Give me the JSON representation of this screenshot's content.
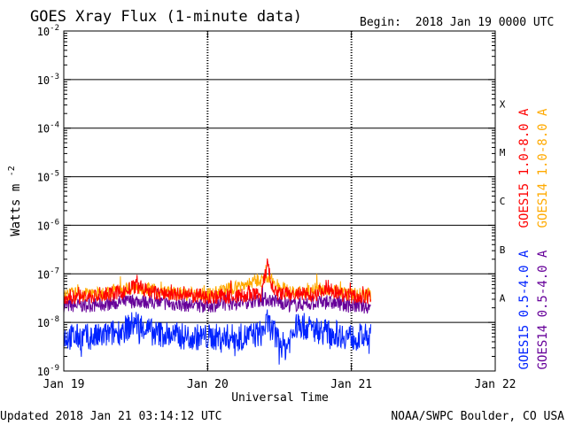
{
  "chart_data": {
    "type": "line",
    "title": "GOES Xray Flux (1-minute data)",
    "begin_label": "Begin:",
    "begin_value": "2018 Jan 19 0000 UTC",
    "xlabel": "Universal Time",
    "ylabel": "Watts m",
    "ylabel_exp": "-2",
    "y_scale": "log",
    "ylim": [
      1e-09,
      0.01
    ],
    "y_ticks": [
      {
        "base": "10",
        "exp": "-9",
        "value": 1e-09
      },
      {
        "base": "10",
        "exp": "-8",
        "value": 1e-08
      },
      {
        "base": "10",
        "exp": "-7",
        "value": 1e-07
      },
      {
        "base": "10",
        "exp": "-6",
        "value": 1e-06
      },
      {
        "base": "10",
        "exp": "-5",
        "value": 1e-05
      },
      {
        "base": "10",
        "exp": "-4",
        "value": 0.0001
      },
      {
        "base": "10",
        "exp": "-3",
        "value": 0.001
      },
      {
        "base": "10",
        "exp": "-2",
        "value": 0.01
      }
    ],
    "xlim": [
      "2018-01-19 00:00",
      "2018-01-22 00:00"
    ],
    "x_ticks": [
      {
        "label": "Jan 19",
        "value": "2018-01-19 00:00"
      },
      {
        "label": "Jan 20",
        "value": "2018-01-20 00:00"
      },
      {
        "label": "Jan 21",
        "value": "2018-01-21 00:00"
      },
      {
        "label": "Jan 22",
        "value": "2018-01-22 00:00"
      }
    ],
    "flare_classes": [
      {
        "label": "A",
        "value": 1e-08
      },
      {
        "label": "B",
        "value": 1e-07
      },
      {
        "label": "C",
        "value": 1e-06
      },
      {
        "label": "M",
        "value": 1e-05
      },
      {
        "label": "X",
        "value": 0.0001
      }
    ],
    "grid": true,
    "legend_position": "right",
    "series": [
      {
        "name": "GOES15 1.0-8.0 A",
        "color": "#ff0000",
        "points": [
          [
            "2018-01-19 00:00",
            3.3e-08
          ],
          [
            "2018-01-19 06:00",
            3.5e-08
          ],
          [
            "2018-01-19 10:00",
            4.2e-08
          ],
          [
            "2018-01-19 12:00",
            5.5e-08
          ],
          [
            "2018-01-19 15:00",
            4e-08
          ],
          [
            "2018-01-19 20:00",
            3.6e-08
          ],
          [
            "2018-01-20 00:00",
            3.4e-08
          ],
          [
            "2018-01-20 06:00",
            3.5e-08
          ],
          [
            "2018-01-20 09:00",
            3.8e-08
          ],
          [
            "2018-01-20 10:00",
            1.6e-07
          ],
          [
            "2018-01-20 11:00",
            4e-08
          ],
          [
            "2018-01-20 14:00",
            3.7e-08
          ],
          [
            "2018-01-20 18:00",
            3.8e-08
          ],
          [
            "2018-01-20 20:00",
            5.5e-08
          ],
          [
            "2018-01-20 22:00",
            3.9e-08
          ],
          [
            "2018-01-21 00:00",
            3.4e-08
          ],
          [
            "2018-01-21 03:14",
            3.3e-08
          ]
        ]
      },
      {
        "name": "GOES14 1.0-8.0 A",
        "color": "#ffaa00",
        "points": [
          [
            "2018-01-19 00:00",
            3.8e-08
          ],
          [
            "2018-01-19 06:00",
            3.9e-08
          ],
          [
            "2018-01-19 12:00",
            5.5e-08
          ],
          [
            "2018-01-19 18:00",
            4e-08
          ],
          [
            "2018-01-20 00:00",
            3.7e-08
          ],
          [
            "2018-01-20 10:00",
            8e-08
          ],
          [
            "2018-01-20 14:00",
            4e-08
          ],
          [
            "2018-01-20 20:00",
            5e-08
          ],
          [
            "2018-01-21 00:00",
            3.8e-08
          ],
          [
            "2018-01-21 03:14",
            3.7e-08
          ]
        ]
      },
      {
        "name": "GOES15 0.5-4.0 A",
        "color": "#0022ff",
        "points": [
          [
            "2018-01-19 00:00",
            5e-09
          ],
          [
            "2018-01-19 06:00",
            5e-09
          ],
          [
            "2018-01-19 10:00",
            7e-09
          ],
          [
            "2018-01-19 12:00",
            1e-08
          ],
          [
            "2018-01-19 15:00",
            6e-09
          ],
          [
            "2018-01-19 21:00",
            5e-09
          ],
          [
            "2018-01-20 00:00",
            5e-09
          ],
          [
            "2018-01-20 06:00",
            5e-09
          ],
          [
            "2018-01-20 09:00",
            6e-09
          ],
          [
            "2018-01-20 10:00",
            1e-08
          ],
          [
            "2018-01-20 12:00",
            4e-09
          ],
          [
            "2018-01-20 13:00",
            3e-09
          ],
          [
            "2018-01-20 15:00",
            9e-09
          ],
          [
            "2018-01-20 18:00",
            7e-09
          ],
          [
            "2018-01-20 21:00",
            6e-09
          ],
          [
            "2018-01-21 00:00",
            5e-09
          ],
          [
            "2018-01-21 03:14",
            5e-09
          ]
        ]
      },
      {
        "name": "GOES14 0.5-4.0 A",
        "color": "#660099",
        "points": [
          [
            "2018-01-19 00:00",
            2.2e-08
          ],
          [
            "2018-01-19 06:00",
            2.3e-08
          ],
          [
            "2018-01-19 12:00",
            2.8e-08
          ],
          [
            "2018-01-19 18:00",
            2.4e-08
          ],
          [
            "2018-01-20 00:00",
            2.2e-08
          ],
          [
            "2018-01-20 10:00",
            3e-08
          ],
          [
            "2018-01-20 14:00",
            2.3e-08
          ],
          [
            "2018-01-20 20:00",
            2.6e-08
          ],
          [
            "2018-01-21 00:00",
            2.2e-08
          ],
          [
            "2018-01-21 03:14",
            2.1e-08
          ]
        ]
      }
    ]
  },
  "footer": {
    "updated": "Updated 2018 Jan 21 03:14:12 UTC",
    "credit": "NOAA/SWPC Boulder, CO USA"
  }
}
